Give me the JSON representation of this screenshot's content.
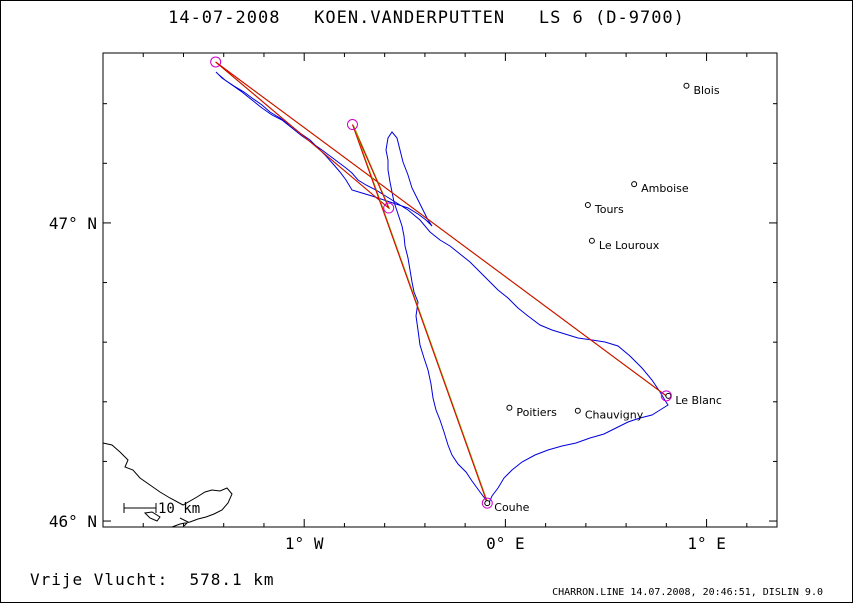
{
  "header": {
    "title": "14-07-2008   KOEN.VANDERPUTTEN   LS 6 (D-9700)"
  },
  "footer": {
    "distance": "Vrije Vlucht:  578.1 km",
    "credit": "CHARRON.LINE 14.07.2008, 20:46:51, DISLIN 9.0"
  },
  "map": {
    "lon_range": [
      -2.0,
      1.35
    ],
    "lat_range": [
      45.98,
      47.57
    ],
    "x_ticks": [
      {
        "value": -1,
        "label": "1° W"
      },
      {
        "value": 0,
        "label": "0° E"
      },
      {
        "value": 1,
        "label": "1° E"
      }
    ],
    "y_ticks": [
      {
        "value": 46,
        "label": "46° N"
      },
      {
        "value": 47,
        "label": "47° N"
      }
    ],
    "scale_bar": {
      "label": "10 km"
    },
    "cities": [
      {
        "name": "Blois",
        "lon": 0.9,
        "lat": 47.46
      },
      {
        "name": "Amboise",
        "lon": 0.64,
        "lat": 47.13
      },
      {
        "name": "Tours",
        "lon": 0.41,
        "lat": 47.06
      },
      {
        "name": "Le Louroux",
        "lon": 0.43,
        "lat": 46.94
      },
      {
        "name": "Le Blanc",
        "lon": 0.81,
        "lat": 46.42
      },
      {
        "name": "Poitiers",
        "lon": 0.02,
        "lat": 46.38
      },
      {
        "name": "Chauvigny",
        "lon": 0.36,
        "lat": 46.37
      },
      {
        "name": "Couhe",
        "lon": -0.09,
        "lat": 46.06
      }
    ],
    "turnpoints": [
      {
        "lon": 0.8,
        "lat": 46.42
      },
      {
        "lon": -1.44,
        "lat": 47.54
      },
      {
        "lon": -0.58,
        "lat": 47.05
      },
      {
        "lon": -0.76,
        "lat": 47.33
      },
      {
        "lon": -0.09,
        "lat": 46.06
      }
    ],
    "colors": {
      "track": "#0000dd",
      "leg": "#dd0000",
      "leg2": "#88aa00",
      "turnpoint": "#cc00cc"
    }
  }
}
